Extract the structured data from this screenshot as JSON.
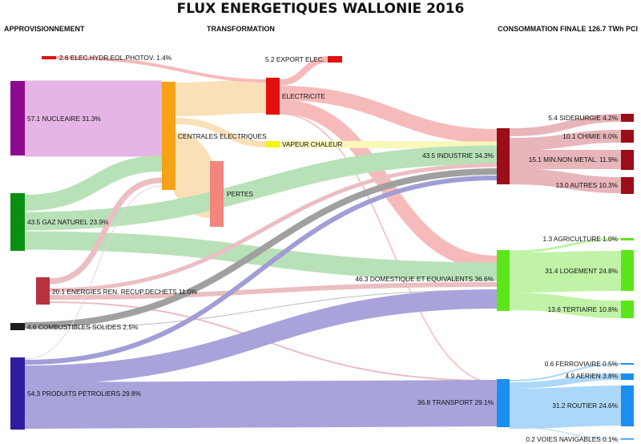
{
  "title": "FLUX ENERGETIQUES WALLONIE 2016",
  "columns": {
    "supply": "APPROVISIONNEMENT",
    "transformation": "TRANSFORMATION",
    "consumption": "CONSOMMATION FINALE 126.7 TWh PCI"
  },
  "colors": {
    "nucleaire": "#8e0a8e",
    "gaz": "#0b8f12",
    "renouvelables": "#b8323e",
    "solides": "#1c1c1c",
    "petrole": "#2f1c9e",
    "centrales": "#f5a314",
    "pertes": "#f2857c",
    "electricite": "#e41010",
    "vapeur": "#f4f418",
    "industrie": "#9b0d18",
    "domestique": "#5ce61a",
    "transport": "#1b8ff0"
  },
  "nodes": {
    "elec_hydro": "2.6 ELEC.HYDR.EOL.PHOTOV. 1.4%",
    "nucleaire": "57.1 NUCLEAIRE 31.3%",
    "gaz": "43.5 GAZ NATUREL 23.9%",
    "renouvelables": "20.1 ENERGIES REN. RECUP.DECHETS 11.0%",
    "solides": "4.6 COMBUSTIBLES SOLIDES 2.5%",
    "petrole": "54.3 PRODUITS PETROLIERS 29.8%",
    "centrales": "CENTRALES ELECTRIQUES",
    "pertes": "PERTES",
    "electricite": "ELECTRICITE",
    "vapeur": "VAPEUR CHALEUR",
    "export": "5.2 EXPORT ELEC.",
    "industrie": "43.5 INDUSTRIE 34.3%",
    "domestique": "46.3 DOMESTIQUE ET EQUIVALENTS 36.6%",
    "transport": "36.8 TRANSPORT 29.1%",
    "siderurgie": "5.4 SIDERURGIE 4.2%",
    "chimie": "10.1 CHIMIE 8.0%",
    "minnonmetal": "15.1 MIN.NON METAL. 11.9%",
    "autres": "13.0 AUTRES 10.3%",
    "agriculture": "1.3 AGRICULTURE 1.0%",
    "logement": "31.4 LOGEMENT 24.8%",
    "tertiaire": "13.6 TERTIAIRE 10.8%",
    "ferroviaire": "0.6 FERROVIAIRE 0.5%",
    "aerien": "4.9 AERIEN 3.8%",
    "routier": "31.2 ROUTIER 24.6%",
    "voies": "0.2 VOIES NAVIGABLES 0.1%"
  }
}
